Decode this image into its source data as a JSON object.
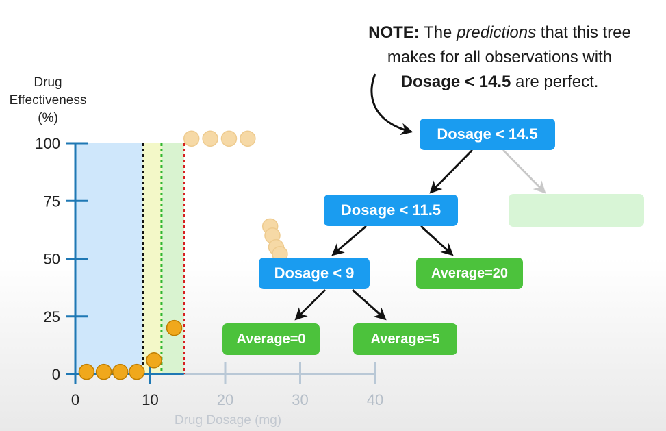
{
  "note": {
    "bold_prefix": "NOTE:",
    "text_1": " The ",
    "italic": "predictions",
    "text_2": " that this tree",
    "line_2": "makes for all observations with",
    "bold_condition": "Dosage < 14.5",
    "text_3": " are perfect."
  },
  "chart_data": {
    "type": "scatter",
    "ylabel_lines": [
      "Drug",
      "Effectiveness",
      "(%)"
    ],
    "xlabel": "Drug Dosage (mg)",
    "x_ticks": [
      0,
      10,
      20,
      30,
      40
    ],
    "y_ticks": [
      0,
      25,
      50,
      75,
      100
    ],
    "xlim": [
      0,
      40
    ],
    "ylim": [
      0,
      100
    ],
    "highlighted_points": [
      {
        "x": 1.5,
        "y": 1
      },
      {
        "x": 3.8,
        "y": 1
      },
      {
        "x": 6.0,
        "y": 1
      },
      {
        "x": 8.2,
        "y": 1
      },
      {
        "x": 10.5,
        "y": 6
      },
      {
        "x": 13.2,
        "y": 20
      }
    ],
    "faded_points": [
      {
        "x": 15.5,
        "y": 102
      },
      {
        "x": 18.0,
        "y": 102
      },
      {
        "x": 20.5,
        "y": 102
      },
      {
        "x": 23.0,
        "y": 102
      },
      {
        "x": 26.0,
        "y": 64
      },
      {
        "x": 26.3,
        "y": 60
      },
      {
        "x": 26.8,
        "y": 55
      },
      {
        "x": 27.3,
        "y": 52
      }
    ],
    "split_lines": [
      {
        "x": 9,
        "color": "#111111"
      },
      {
        "x": 11.5,
        "color": "#2fb52f"
      },
      {
        "x": 14.5,
        "color": "#d62020"
      }
    ],
    "colors": {
      "point": "#f0a81c",
      "point_edge": "#c07e00",
      "faded_point": "#f6d9a6",
      "axis": "#1f78b4",
      "faded_axis": "#b9c8d6",
      "region_blue": "#cfe7fb",
      "region_yellow": "#f3f8c8",
      "region_green": "#d9f3d0"
    }
  },
  "tree": {
    "root": "Dosage < 14.5",
    "left": "Dosage < 11.5",
    "left_left": "Dosage < 9",
    "left_right": "Average=20",
    "leaf_a": "Average=0",
    "leaf_b": "Average=5"
  }
}
